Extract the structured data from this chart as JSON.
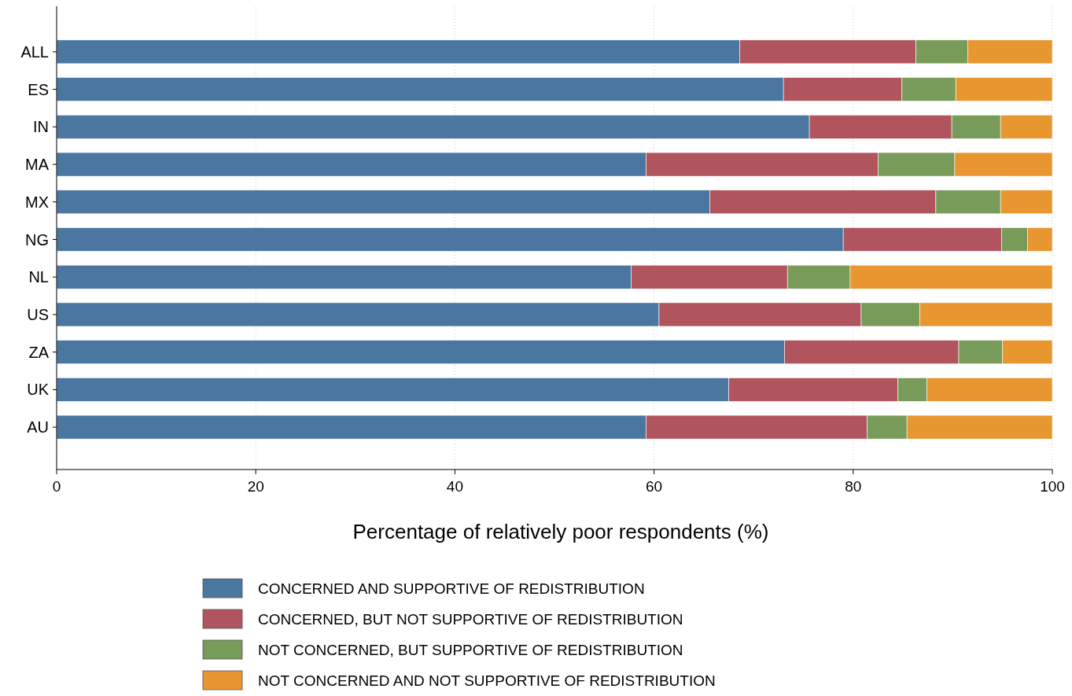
{
  "chart_data": {
    "type": "bar",
    "orientation": "horizontal",
    "stacked": true,
    "categories": [
      "ALL",
      "ES",
      "IN",
      "MA",
      "MX",
      "NG",
      "NL",
      "US",
      "ZA",
      "UK",
      "AU"
    ],
    "xlabel": "Percentage of relatively poor respondents (%)",
    "xlim": [
      0,
      100
    ],
    "xticks": [
      0,
      20,
      40,
      60,
      80,
      100
    ],
    "grid": "x",
    "legend": "bottom",
    "series": [
      {
        "name": "CONCERNED AND SUPPORTIVE OF REDISTRIBUTION",
        "color": "#4a76a0",
        "values": [
          68.6,
          73.0,
          75.6,
          59.2,
          65.6,
          79.0,
          57.7,
          60.5,
          73.1,
          67.5,
          59.2
        ]
      },
      {
        "name": "CONCERNED, BUT NOT SUPPORTIVE OF REDISTRIBUTION",
        "color": "#b0555d",
        "values": [
          17.7,
          11.9,
          14.3,
          23.3,
          22.7,
          15.9,
          15.7,
          20.3,
          17.5,
          17.0,
          22.2
        ]
      },
      {
        "name": "NOT CONCERNED, BUT SUPPORTIVE OF REDISTRIBUTION",
        "color": "#789b5a",
        "values": [
          5.2,
          5.4,
          4.9,
          7.7,
          6.5,
          2.6,
          6.3,
          5.9,
          4.4,
          2.9,
          4.0
        ]
      },
      {
        "name": "NOT CONCERNED AND NOT SUPPORTIVE OF REDISTRIBUTION",
        "color": "#e8962f",
        "values": [
          8.5,
          9.7,
          5.2,
          9.8,
          5.2,
          2.5,
          20.3,
          13.3,
          5.0,
          12.6,
          14.6
        ]
      }
    ]
  }
}
